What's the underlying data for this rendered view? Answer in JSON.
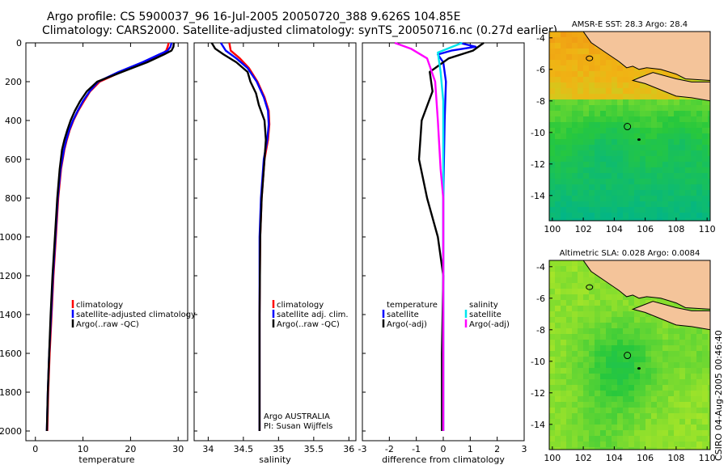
{
  "header": {
    "line1": "Argo profile: CS 5900037_96 16-Jul-2005 20050720_388 9.626S 104.85E",
    "line2": "Climatology: CARS2000. Satellite-adjusted climatology: synTS_20050716.nc (0.27d earlier)"
  },
  "credit": "CSIRO 04-Aug-2005 00:46:40",
  "colors": {
    "climatology": "#ff0000",
    "satellite": "#0000ff",
    "argo": "#000000",
    "salinity_satellite": "#00e5ee",
    "salinity_argo": "#ff00ff",
    "land": "#f4c49a"
  },
  "chart_data": [
    {
      "id": "temperature",
      "type": "line",
      "xlabel": "temperature",
      "ylabel": "",
      "xlim": [
        -2,
        32
      ],
      "ylim": [
        2050,
        0
      ],
      "xticks": [
        0,
        10,
        20,
        30
      ],
      "xtick_labels": [
        "0",
        "10",
        "20",
        "30"
      ],
      "yticks": [
        0,
        200,
        400,
        600,
        800,
        1000,
        1200,
        1400,
        1600,
        1800,
        2000
      ],
      "ytick_labels": [
        "0",
        "200",
        "400",
        "600",
        "800",
        "1000",
        "1200",
        "1400",
        "1600",
        "1800",
        "2000"
      ],
      "legend": [
        "climatology",
        "satellite-adjusted climatology",
        "Argo(..raw -QC)"
      ],
      "series": [
        {
          "name": "climatology",
          "color": "#ff0000",
          "x": [
            28.0,
            27.8,
            27.5,
            26.5,
            23.0,
            18.0,
            13.5,
            11.5,
            10.2,
            9.0,
            8.0,
            7.2,
            6.6,
            6.1,
            5.4,
            4.8,
            4.3,
            3.8,
            3.4,
            3.0,
            2.7,
            2.5
          ],
          "y": [
            0,
            20,
            40,
            60,
            100,
            150,
            200,
            250,
            300,
            350,
            400,
            450,
            500,
            550,
            650,
            800,
            1000,
            1200,
            1400,
            1600,
            1800,
            2000
          ]
        },
        {
          "name": "satellite-adjusted climatology",
          "color": "#0000ff",
          "x": [
            28.6,
            28.4,
            27.8,
            26.0,
            22.5,
            17.5,
            13.2,
            11.4,
            10.0,
            8.9,
            7.9,
            7.1,
            6.5,
            6.0,
            5.3,
            4.7,
            4.2,
            3.7,
            3.3,
            2.9,
            2.6,
            2.4
          ],
          "y": [
            0,
            20,
            40,
            60,
            100,
            150,
            200,
            250,
            300,
            350,
            400,
            450,
            500,
            550,
            650,
            800,
            1000,
            1200,
            1400,
            1600,
            1800,
            2000
          ]
        },
        {
          "name": "Argo(..raw -QC)",
          "color": "#000000",
          "x": [
            29.1,
            29.0,
            28.6,
            27.0,
            23.5,
            18.2,
            13.0,
            10.8,
            9.4,
            8.3,
            7.4,
            6.7,
            6.1,
            5.6,
            5.1,
            4.6,
            4.1,
            3.6,
            3.2,
            2.9,
            2.6,
            2.4
          ],
          "y": [
            0,
            20,
            40,
            60,
            100,
            150,
            200,
            250,
            300,
            350,
            400,
            450,
            500,
            550,
            650,
            800,
            1000,
            1200,
            1400,
            1600,
            1800,
            2000
          ]
        }
      ]
    },
    {
      "id": "salinity",
      "type": "line",
      "xlabel": "salinity",
      "xlim": [
        33.8,
        36.1
      ],
      "ylim": [
        2050,
        0
      ],
      "xticks": [
        34,
        34.5,
        35,
        35.5,
        36
      ],
      "xtick_labels": [
        "34",
        "34.5",
        "35",
        "35.5",
        "36"
      ],
      "legend": [
        "climatology",
        "satellite adj. clim.",
        "Argo(..raw -QC)"
      ],
      "annotation": [
        "Argo AUSTRALIA",
        "PI: Susan Wijffels"
      ],
      "series": [
        {
          "name": "climatology",
          "color": "#ff0000",
          "x": [
            34.3,
            34.32,
            34.45,
            34.58,
            34.7,
            34.8,
            34.86,
            34.87,
            34.85,
            34.8,
            34.76,
            34.74,
            34.73,
            34.73,
            34.73
          ],
          "y": [
            0,
            40,
            80,
            130,
            200,
            280,
            350,
            420,
            500,
            600,
            800,
            1000,
            1400,
            1700,
            2000
          ]
        },
        {
          "name": "satellite adj. clim.",
          "color": "#0000ff",
          "x": [
            34.18,
            34.25,
            34.4,
            34.56,
            34.69,
            34.79,
            34.85,
            34.86,
            34.84,
            34.79,
            34.75,
            34.73,
            34.73,
            34.73,
            34.73
          ],
          "y": [
            0,
            40,
            80,
            130,
            200,
            280,
            350,
            420,
            500,
            600,
            800,
            1000,
            1400,
            1700,
            2000
          ]
        },
        {
          "name": "Argo(..raw -QC)",
          "color": "#000000",
          "x": [
            34.05,
            34.1,
            34.22,
            34.4,
            34.56,
            34.6,
            34.68,
            34.72,
            34.8,
            34.82,
            34.8,
            34.76,
            34.74,
            34.73,
            34.73,
            34.73
          ],
          "y": [
            0,
            30,
            60,
            100,
            150,
            200,
            260,
            320,
            400,
            500,
            600,
            800,
            1000,
            1400,
            1700,
            2000
          ]
        }
      ]
    },
    {
      "id": "difference",
      "type": "line",
      "xlabel": "difference from climatology",
      "xlim": [
        -3,
        3
      ],
      "ylim": [
        2050,
        0
      ],
      "xticks": [
        -3,
        -2,
        -1,
        0,
        1,
        2,
        3
      ],
      "xtick_labels": [
        "-3",
        "-2",
        "-1",
        "0",
        "1",
        "2",
        "3"
      ],
      "legend_left": [
        "temperature",
        "satellite",
        "Argo(-adj)"
      ],
      "legend_right": [
        "salinity",
        "satellite",
        "Argo(-adj)"
      ],
      "series": [
        {
          "name": "temperature satellite",
          "color": "#0000ff",
          "x": [
            0.6,
            1.2,
            0.3,
            -0.2,
            0.0,
            0.1,
            0.05,
            0.0,
            0.0,
            0.0,
            0.0
          ],
          "y": [
            0,
            20,
            40,
            60,
            100,
            200,
            400,
            800,
            1200,
            1600,
            2000
          ]
        },
        {
          "name": "temperature Argo(-adj)",
          "color": "#000000",
          "x": [
            1.5,
            1.1,
            0.2,
            -0.5,
            -0.4,
            -0.8,
            -0.9,
            -0.6,
            -0.2,
            0.0,
            -0.05,
            -0.05
          ],
          "y": [
            0,
            40,
            80,
            150,
            250,
            400,
            600,
            800,
            1000,
            1200,
            1600,
            2000
          ]
        },
        {
          "name": "salinity satellite",
          "color": "#00e5ee",
          "x": [
            0.7,
            -0.2,
            -0.1,
            0.0,
            0.0,
            0.0,
            0.0,
            0.0
          ],
          "y": [
            0,
            50,
            150,
            300,
            600,
            1000,
            1500,
            2000
          ]
        },
        {
          "name": "salinity Argo(-adj)",
          "color": "#ff00ff",
          "x": [
            -1.8,
            -1.2,
            -0.6,
            -0.3,
            -0.2,
            -0.1,
            0.0,
            0.0,
            0.0
          ],
          "y": [
            0,
            30,
            80,
            200,
            400,
            650,
            800,
            1200,
            2000
          ]
        }
      ]
    },
    {
      "id": "sst-map",
      "type": "heatmap",
      "title": "AMSR-E SST: 28.3 Argo: 28.4",
      "xlim": [
        99.8,
        110.2
      ],
      "ylim": [
        -15.6,
        -3.6
      ],
      "xticks": [
        100,
        102,
        104,
        106,
        108,
        110
      ],
      "xtick_labels": [
        "100",
        "102",
        "104",
        "106",
        "108",
        "110"
      ],
      "yticks": [
        -4,
        -6,
        -8,
        -10,
        -12,
        -14
      ],
      "ytick_labels": [
        "-4",
        "-6",
        "-8",
        "-10",
        "-12",
        "-14"
      ],
      "float_position": {
        "lon": 104.85,
        "lat": -9.626
      }
    },
    {
      "id": "sla-map",
      "type": "heatmap",
      "title": "Altimetric SLA: 0.028 Argo: 0.0084",
      "xlim": [
        99.8,
        110.2
      ],
      "ylim": [
        -15.6,
        -3.6
      ],
      "xticks": [
        100,
        102,
        104,
        106,
        108,
        110
      ],
      "xtick_labels": [
        "100",
        "102",
        "104",
        "106",
        "108",
        "110"
      ],
      "yticks": [
        -4,
        -6,
        -8,
        -10,
        -12,
        -14
      ],
      "ytick_labels": [
        "-4",
        "-6",
        "-8",
        "-10",
        "-12",
        "-14"
      ],
      "float_position": {
        "lon": 104.85,
        "lat": -9.626
      }
    }
  ]
}
